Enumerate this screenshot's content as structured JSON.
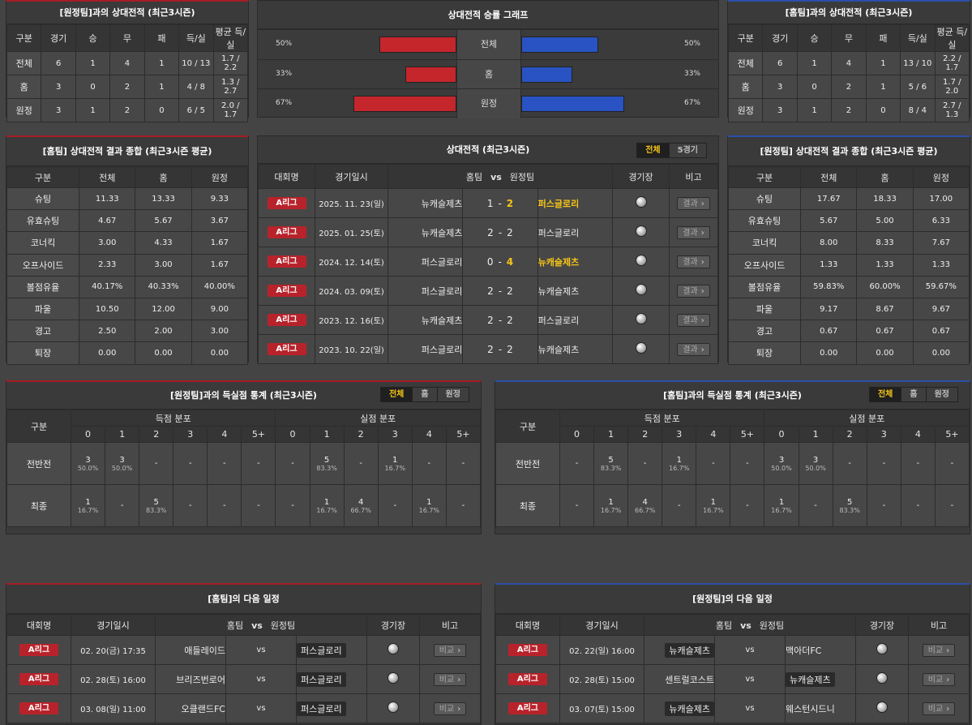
{
  "away_h2h": {
    "title": "[원정팀]과의 상대전적 (최근3시즌)",
    "headers": [
      "구분",
      "경기",
      "승",
      "무",
      "패",
      "득/실",
      "평균 득/실"
    ],
    "rows": [
      [
        "전체",
        "6",
        "1",
        "4",
        "1",
        "10 / 13",
        "1.7 / 2.2"
      ],
      [
        "홈",
        "3",
        "0",
        "2",
        "1",
        "4 / 8",
        "1.3 / 2.7"
      ],
      [
        "원정",
        "3",
        "1",
        "2",
        "0",
        "6 / 5",
        "2.0 / 1.7"
      ]
    ]
  },
  "home_h2h": {
    "title": "[홈팀]과의 상대전적 (최근3시즌)",
    "headers": [
      "구분",
      "경기",
      "승",
      "무",
      "패",
      "득/실",
      "평균 득/실"
    ],
    "rows": [
      [
        "전체",
        "6",
        "1",
        "4",
        "1",
        "13 / 10",
        "2.2 / 1.7"
      ],
      [
        "홈",
        "3",
        "0",
        "2",
        "1",
        "5 / 6",
        "1.7 / 2.0"
      ],
      [
        "원정",
        "3",
        "1",
        "2",
        "0",
        "8 / 4",
        "2.7 / 1.3"
      ]
    ]
  },
  "graph": {
    "title": "상대전적 승률 그래프",
    "rows": [
      {
        "label": "전체",
        "left": "50%",
        "right": "50%",
        "left_frac": 0.5,
        "right_frac": 0.5
      },
      {
        "label": "홈",
        "left": "33%",
        "right": "33%",
        "left_frac": 0.33,
        "right_frac": 0.33
      },
      {
        "label": "원정",
        "left": "67%",
        "right": "67%",
        "left_frac": 0.67,
        "right_frac": 0.67
      }
    ],
    "colors": {
      "left": "#c5262c",
      "right": "#2953c2"
    }
  },
  "home_summary": {
    "title": "[홈팀] 상대전적 결과 종합 (최근3시즌 평균)",
    "headers": [
      "구분",
      "전체",
      "홈",
      "원정"
    ],
    "rows": [
      [
        "슈팅",
        "11.33",
        "13.33",
        "9.33"
      ],
      [
        "유효슈팅",
        "4.67",
        "5.67",
        "3.67"
      ],
      [
        "코너킥",
        "3.00",
        "4.33",
        "1.67"
      ],
      [
        "오프사이드",
        "2.33",
        "3.00",
        "1.67"
      ],
      [
        "볼점유율",
        "40.17%",
        "40.33%",
        "40.00%"
      ],
      [
        "파울",
        "10.50",
        "12.00",
        "9.00"
      ],
      [
        "경고",
        "2.50",
        "2.00",
        "3.00"
      ],
      [
        "퇴장",
        "0.00",
        "0.00",
        "0.00"
      ]
    ]
  },
  "away_summary": {
    "title": "[원정팀] 상대전적 결과 종합 (최근3시즌 평균)",
    "headers": [
      "구분",
      "전체",
      "홈",
      "원정"
    ],
    "rows": [
      [
        "슈팅",
        "17.67",
        "18.33",
        "17.00"
      ],
      [
        "유효슈팅",
        "5.67",
        "5.00",
        "6.33"
      ],
      [
        "코너킥",
        "8.00",
        "8.33",
        "7.67"
      ],
      [
        "오프사이드",
        "1.33",
        "1.33",
        "1.33"
      ],
      [
        "볼점유율",
        "59.83%",
        "60.00%",
        "59.67%"
      ],
      [
        "파울",
        "9.17",
        "8.67",
        "9.67"
      ],
      [
        "경고",
        "0.67",
        "0.67",
        "0.67"
      ],
      [
        "퇴장",
        "0.00",
        "0.00",
        "0.00"
      ]
    ]
  },
  "matches": {
    "title": "상대전적 (최근3시즌)",
    "tabs": [
      "전체",
      "5경기"
    ],
    "headers": {
      "league": "대회명",
      "date": "경기일시",
      "home": "홈팀",
      "vs": "vs",
      "away": "원정팀",
      "venue": "경기장",
      "note": "비고"
    },
    "rows": [
      {
        "league": "A리그",
        "date": "2025. 11. 23(일)",
        "home": "뉴캐슬제츠",
        "hs": "1",
        "as": "2",
        "away": "퍼스글로리",
        "win": "away",
        "btn": "결과"
      },
      {
        "league": "A리그",
        "date": "2025. 01. 25(토)",
        "home": "뉴캐슬제츠",
        "hs": "2",
        "as": "2",
        "away": "퍼스글로리",
        "win": "",
        "btn": "결과"
      },
      {
        "league": "A리그",
        "date": "2024. 12. 14(토)",
        "home": "퍼스글로리",
        "hs": "0",
        "as": "4",
        "away": "뉴캐슬제츠",
        "win": "away",
        "btn": "결과"
      },
      {
        "league": "A리그",
        "date": "2024. 03. 09(토)",
        "home": "퍼스글로리",
        "hs": "2",
        "as": "2",
        "away": "뉴캐슬제츠",
        "win": "",
        "btn": "결과"
      },
      {
        "league": "A리그",
        "date": "2023. 12. 16(토)",
        "home": "뉴캐슬제츠",
        "hs": "2",
        "as": "2",
        "away": "퍼스글로리",
        "win": "",
        "btn": "결과"
      },
      {
        "league": "A리그",
        "date": "2023. 10. 22(일)",
        "home": "퍼스글로리",
        "hs": "2",
        "as": "2",
        "away": "뉴캐슬제츠",
        "win": "",
        "btn": "결과"
      }
    ]
  },
  "goals_left": {
    "title": "[원정팀]과의 득실점 통계 (최근3시즌)",
    "tabs": [
      "전체",
      "홈",
      "원정"
    ],
    "gubun": "구분",
    "scored": "득점 분포",
    "conceded": "실점 분포",
    "cols": [
      "0",
      "1",
      "2",
      "3",
      "4",
      "5+"
    ],
    "rows": [
      {
        "label": "전반전",
        "cells": [
          [
            "3",
            "50.0%"
          ],
          [
            "3",
            "50.0%"
          ],
          [
            "-",
            ""
          ],
          [
            "-",
            ""
          ],
          [
            "-",
            ""
          ],
          [
            "-",
            ""
          ],
          [
            "-",
            ""
          ],
          [
            "5",
            "83.3%"
          ],
          [
            "-",
            ""
          ],
          [
            "1",
            "16.7%"
          ],
          [
            "-",
            ""
          ],
          [
            "-",
            ""
          ]
        ]
      },
      {
        "label": "최종",
        "cells": [
          [
            "1",
            "16.7%"
          ],
          [
            "-",
            ""
          ],
          [
            "5",
            "83.3%"
          ],
          [
            "-",
            ""
          ],
          [
            "-",
            ""
          ],
          [
            "-",
            ""
          ],
          [
            "-",
            ""
          ],
          [
            "1",
            "16.7%"
          ],
          [
            "4",
            "66.7%"
          ],
          [
            "-",
            ""
          ],
          [
            "1",
            "16.7%"
          ],
          [
            "-",
            ""
          ]
        ]
      }
    ]
  },
  "goals_right": {
    "title": "[홈팀]과의 득실점 통계 (최근3시즌)",
    "tabs": [
      "전체",
      "홈",
      "원정"
    ],
    "gubun": "구분",
    "scored": "득점 분포",
    "conceded": "실점 분포",
    "cols": [
      "0",
      "1",
      "2",
      "3",
      "4",
      "5+"
    ],
    "rows": [
      {
        "label": "전반전",
        "cells": [
          [
            "-",
            ""
          ],
          [
            "5",
            "83.3%"
          ],
          [
            "-",
            ""
          ],
          [
            "1",
            "16.7%"
          ],
          [
            "-",
            ""
          ],
          [
            "-",
            ""
          ],
          [
            "3",
            "50.0%"
          ],
          [
            "3",
            "50.0%"
          ],
          [
            "-",
            ""
          ],
          [
            "-",
            ""
          ],
          [
            "-",
            ""
          ],
          [
            "-",
            ""
          ]
        ]
      },
      {
        "label": "최종",
        "cells": [
          [
            "-",
            ""
          ],
          [
            "1",
            "16.7%"
          ],
          [
            "4",
            "66.7%"
          ],
          [
            "-",
            ""
          ],
          [
            "1",
            "16.7%"
          ],
          [
            "-",
            ""
          ],
          [
            "1",
            "16.7%"
          ],
          [
            "-",
            ""
          ],
          [
            "5",
            "83.3%"
          ],
          [
            "-",
            ""
          ],
          [
            "-",
            ""
          ],
          [
            "-",
            ""
          ]
        ]
      }
    ]
  },
  "home_next": {
    "title": "[홈팀]의 다음 일정",
    "headers": {
      "league": "대회명",
      "date": "경기일시",
      "home": "홈팀",
      "vs": "vs",
      "away": "원정팀",
      "venue": "경기장",
      "note": "비고"
    },
    "rows": [
      {
        "league": "A리그",
        "date": "02. 20(금) 17:35",
        "home": "애들레이드",
        "away": "퍼스글로리",
        "boxed": "away",
        "btn": "비교"
      },
      {
        "league": "A리그",
        "date": "02. 28(토) 16:00",
        "home": "브리즈번로어",
        "away": "퍼스글로리",
        "boxed": "away",
        "btn": "비교"
      },
      {
        "league": "A리그",
        "date": "03. 08(일) 11:00",
        "home": "오클랜드FC",
        "away": "퍼스글로리",
        "boxed": "away",
        "btn": "비교"
      }
    ]
  },
  "away_next": {
    "title": "[원정팀]의 다음 일정",
    "headers": {
      "league": "대회명",
      "date": "경기일시",
      "home": "홈팀",
      "vs": "vs",
      "away": "원정팀",
      "venue": "경기장",
      "note": "비고"
    },
    "rows": [
      {
        "league": "A리그",
        "date": "02. 22(일) 16:00",
        "home": "뉴캐슬제츠",
        "away": "맥아더FC",
        "boxed": "home",
        "btn": "비교"
      },
      {
        "league": "A리그",
        "date": "02. 28(토) 15:00",
        "home": "센트럴코스트",
        "away": "뉴캐슬제츠",
        "boxed": "away",
        "btn": "비교"
      },
      {
        "league": "A리그",
        "date": "03. 07(토) 15:00",
        "home": "뉴캐슬제츠",
        "away": "웨스턴시드니",
        "boxed": "home",
        "btn": "비교"
      }
    ]
  }
}
